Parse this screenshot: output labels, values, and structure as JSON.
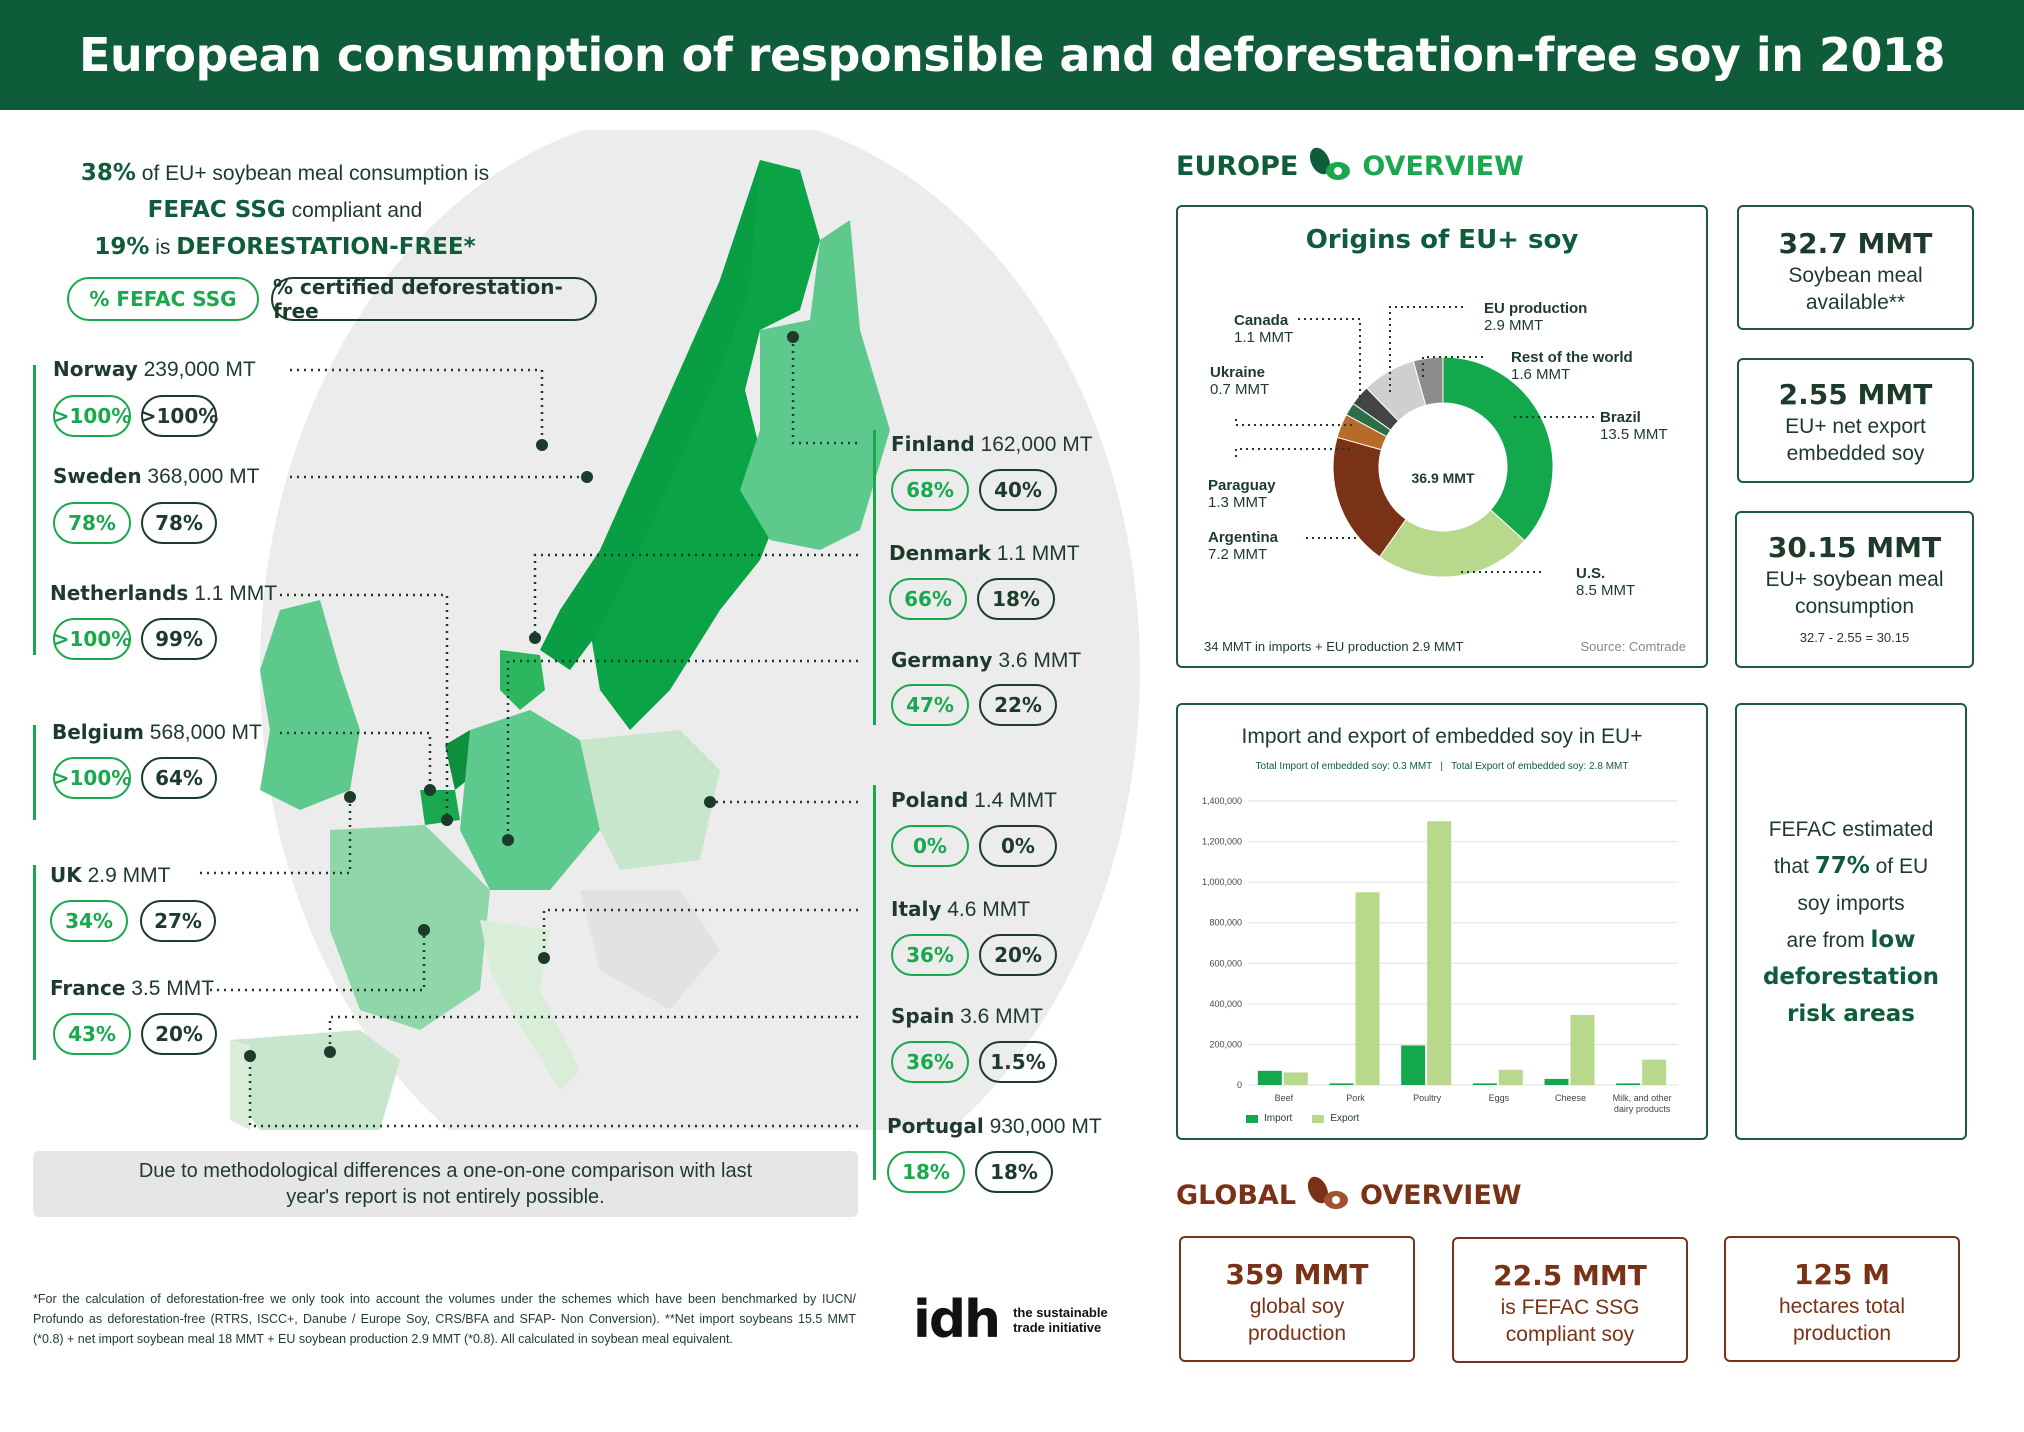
{
  "title": "European consumption of responsible and deforestation-free soy in 2018",
  "intro": {
    "pct1": "38%",
    "text1": " of EU+ soybean meal consumption is",
    "fefac": "FEFAC SSG",
    "text2": " compliant and",
    "pct2": "19%",
    "text3": " is ",
    "df": "DEFORESTATION-FREE*"
  },
  "legend": {
    "fefac": "% FEFAC SSG",
    "certified": "% certified deforestation-free"
  },
  "countries": [
    {
      "name": "Norway",
      "volume": "239,000 MT",
      "fefac": ">100%",
      "certified": ">100%"
    },
    {
      "name": "Sweden",
      "volume": "368,000 MT",
      "fefac": "78%",
      "certified": "78%"
    },
    {
      "name": "Netherlands",
      "volume": "1.1 MMT",
      "fefac": ">100%",
      "certified": "99%"
    },
    {
      "name": "Belgium",
      "volume": "568,000 MT",
      "fefac": ">100%",
      "certified": "64%"
    },
    {
      "name": "UK",
      "volume": "2.9 MMT",
      "fefac": "34%",
      "certified": "27%"
    },
    {
      "name": "France",
      "volume": "3.5 MMT",
      "fefac": "43%",
      "certified": "20%"
    },
    {
      "name": "Finland",
      "volume": "162,000 MT",
      "fefac": "68%",
      "certified": "40%"
    },
    {
      "name": "Denmark",
      "volume": "1.1 MMT",
      "fefac": "66%",
      "certified": "18%"
    },
    {
      "name": "Germany",
      "volume": "3.6 MMT",
      "fefac": "47%",
      "certified": "22%"
    },
    {
      "name": "Poland",
      "volume": "1.4 MMT",
      "fefac": "0%",
      "certified": "0%"
    },
    {
      "name": "Italy",
      "volume": "4.6 MMT",
      "fefac": "36%",
      "certified": "20%"
    },
    {
      "name": "Spain",
      "volume": "3.6 MMT",
      "fefac": "36%",
      "certified": "1.5%"
    },
    {
      "name": "Portugal",
      "volume": "930,000 MT",
      "fefac": "18%",
      "certified": "18%"
    }
  ],
  "note": "Due to methodological differences a one-on-one comparison with last year's report is not entirely possible.",
  "footnote": "*For the calculation of deforestation-free we only took into account the volumes under the schemes which have been benchmarked by IUCN/ Profundo as deforestation-free (RTRS, ISCC+, Danube / Europe Soy, CRS/BFA and SFAP- Non Conversion). **Net import soybeans 15.5 MMT (*0.8) + net import soybean meal 18 MMT + EU soybean production 2.9 MMT (*0.8). All calculated in soybean meal equivalent.",
  "logo": {
    "mark": "idh",
    "line1": "the sustainable",
    "line2": "trade initiative"
  },
  "europe_overview": {
    "word1": "EUROPE",
    "word2": "OVERVIEW"
  },
  "global_overview": {
    "word1": "GLOBAL",
    "word2": "OVERVIEW"
  },
  "stats": [
    {
      "big": "32.7 MMT",
      "text": "Soybean meal available**"
    },
    {
      "big": "2.55 MMT",
      "text": "EU+ net export embedded soy"
    },
    {
      "big": "30.15 MMT",
      "text": "EU+ soybean meal consumption",
      "sub": "32.7 - 2.55 = 30.15"
    }
  ],
  "fefac_box": {
    "t1": "FEFAC estimated",
    "t2a": "that ",
    "t2b": "77%",
    "t2c": " of EU",
    "t3": "soy imports",
    "t4a": "are from ",
    "t4b": "low",
    "t5": "deforestation",
    "t6": "risk areas"
  },
  "global_stats": [
    {
      "big": "359 MMT",
      "text": "global soy production"
    },
    {
      "big": "22.5 MMT",
      "text": "is FEFAC SSG compliant soy"
    },
    {
      "big": "125 M",
      "text": "hectares total production"
    }
  ],
  "colors": {
    "dark_green": "#0e5c3a",
    "bright_green": "#1aa84f",
    "light_green": "#b5d88e",
    "brown": "#7a3216"
  },
  "chart_data": [
    {
      "type": "pie",
      "title": "Origins of EU+ soy",
      "center_label": "36.9 MMT",
      "slices": [
        {
          "name": "Brazil",
          "value_label": "13.5 MMT",
          "value": 13.5,
          "color": "#13a84c"
        },
        {
          "name": "U.S.",
          "value_label": "8.5 MMT",
          "value": 8.5,
          "color": "#b8d88c"
        },
        {
          "name": "Argentina",
          "value_label": "7.2 MMT",
          "value": 7.2,
          "color": "#7a3216"
        },
        {
          "name": "Paraguay",
          "value_label": "1.3 MMT",
          "value": 1.3,
          "color": "#b86b28"
        },
        {
          "name": "Ukraine",
          "value_label": "0.7 MMT",
          "value": 0.7,
          "color": "#2c6e49"
        },
        {
          "name": "Canada",
          "value_label": "1.1 MMT",
          "value": 1.1,
          "color": "#444444"
        },
        {
          "name": "EU production",
          "value_label": "2.9 MMT",
          "value": 2.9,
          "color": "#cfcfcf"
        },
        {
          "name": "Rest of the world",
          "value_label": "1.6 MMT",
          "value": 1.6,
          "color": "#8c8c8c"
        }
      ],
      "footer_left": "34 MMT in imports + EU production 2.9 MMT",
      "footer_right": "Source: Comtrade"
    },
    {
      "type": "bar",
      "title": "Import and export of embedded soy in EU+",
      "subtitle": "Total Import of embedded soy: 0.3 MMT   |   Total Export of embedded soy: 2.8 MMT",
      "categories": [
        "Beef",
        "Pork",
        "Poultry",
        "Eggs",
        "Cheese",
        "Milk, and other dairy products"
      ],
      "series": [
        {
          "name": "Import",
          "color": "#13a84c",
          "values": [
            70000,
            8000,
            195000,
            8000,
            30000,
            8000
          ]
        },
        {
          "name": "Export",
          "color": "#b8d88c",
          "values": [
            62000,
            950000,
            1300000,
            75000,
            345000,
            125000
          ]
        }
      ],
      "ylim": [
        0,
        1400000
      ],
      "yticks": [
        "0",
        "200,000",
        "400,000",
        "600,000",
        "800,000",
        "1,000,000",
        "1,200,000",
        "1,400,000"
      ],
      "grid": true,
      "legend": "bottom-left"
    }
  ]
}
